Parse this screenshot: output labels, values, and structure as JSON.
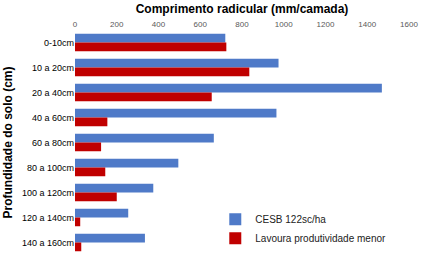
{
  "chart_data": {
    "type": "bar",
    "orientation": "horizontal",
    "x_label": "Comprimento radicular (mm/camada)",
    "y_label": "Profundidade do solo (cm)",
    "categories": [
      "0-10cm",
      "10 a 20cm",
      "20 a 40cm",
      "40 a 60cm",
      "60 a 80cm",
      "80 a 100cm",
      "100 a 120cm",
      "120 a 140cm",
      "140 a 160cm"
    ],
    "series": [
      {
        "name": "CESB 122sc/ha",
        "color": "#4f7ac8",
        "values": [
          720,
          975,
          1470,
          965,
          665,
          495,
          375,
          255,
          335
        ]
      },
      {
        "name": "Lavoura produtividade menor",
        "color": "#c00000",
        "values": [
          725,
          835,
          655,
          155,
          125,
          145,
          200,
          25,
          30
        ]
      }
    ],
    "xlim": [
      0,
      1600
    ],
    "xticks": [
      0,
      200,
      400,
      600,
      800,
      1000,
      1200,
      1400,
      1600
    ],
    "grid": false,
    "legend": "lower right"
  }
}
